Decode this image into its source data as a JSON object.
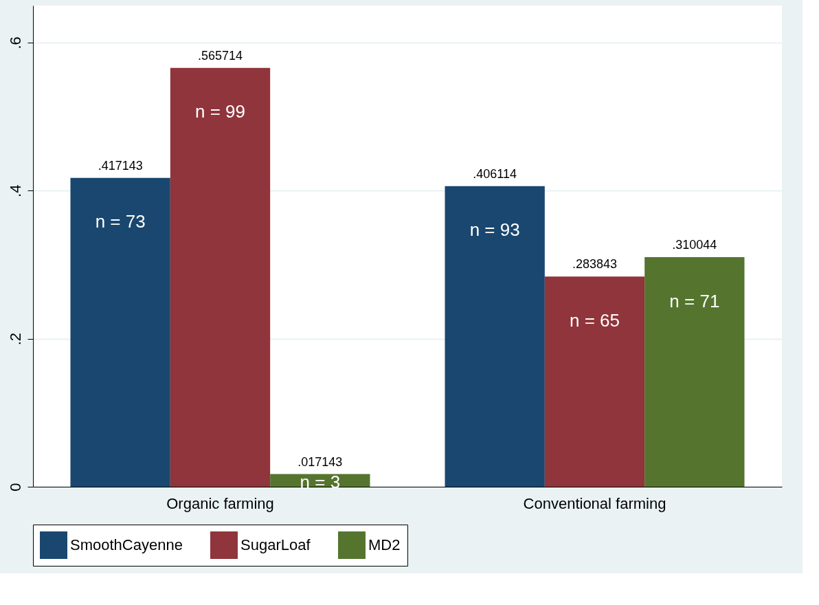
{
  "chart_data": {
    "type": "bar",
    "categories": [
      "Organic farming",
      "Conventional farming"
    ],
    "series": [
      {
        "name": "SmoothCayenne",
        "color": "#1a476f",
        "values": [
          0.417143,
          0.406114
        ],
        "value_labels": [
          ".417143",
          ".406114"
        ]
      },
      {
        "name": "SugarLoaf",
        "color": "#90353b",
        "values": [
          0.565714,
          0.283843
        ],
        "value_labels": [
          ".565714",
          ".283843"
        ]
      },
      {
        "name": "MD2",
        "color": "#55752f",
        "values": [
          0.017143,
          0.310044
        ],
        "value_labels": [
          ".017143",
          ".310044"
        ]
      }
    ],
    "ylim": [
      0,
      0.65
    ],
    "yticks": [
      0,
      {
        "value": 0.2,
        "label": ".2"
      },
      {
        "value": 0.4,
        "label": ".4"
      },
      {
        "value": 0.6,
        "label": ".6"
      }
    ],
    "grid": "y",
    "legend": "bottom",
    "annotations": [
      "n = 73",
      "n = 99",
      "n = 3",
      "n = 93",
      "n = 65",
      "n = 71"
    ]
  }
}
